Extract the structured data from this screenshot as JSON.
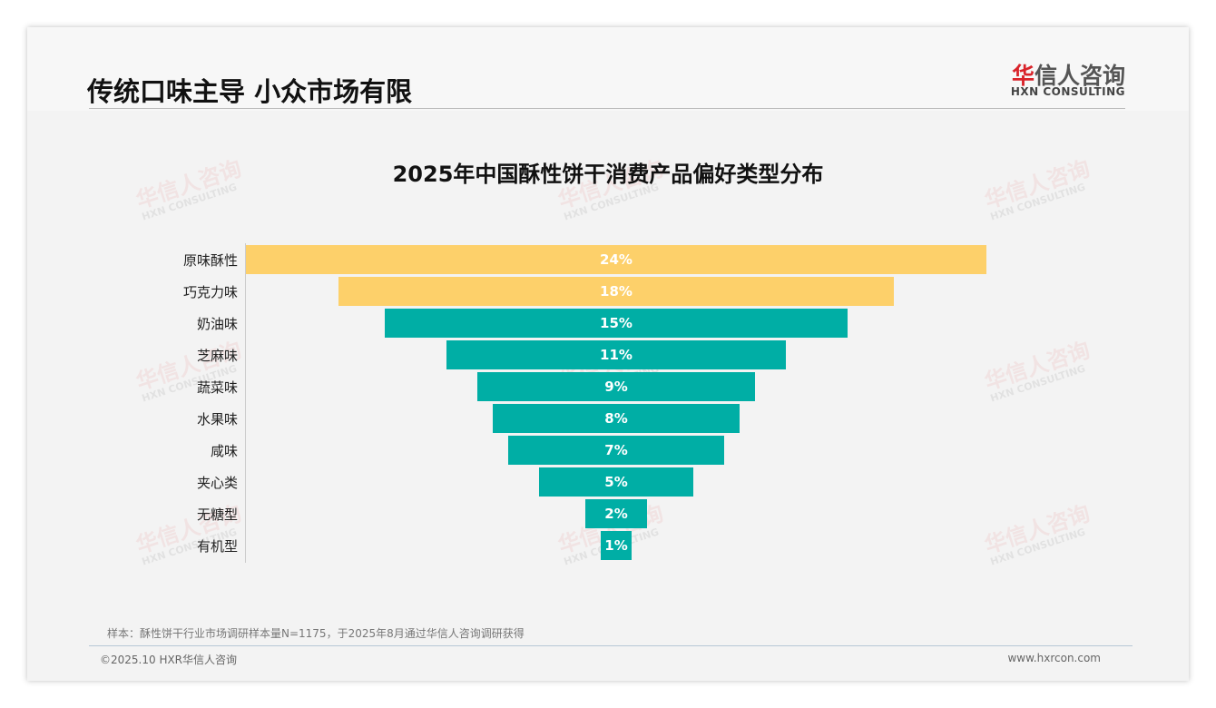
{
  "header": {
    "title": "传统口味主导 小众市场有限",
    "logo_cn_mark": "华",
    "logo_cn_rest": "信人咨询",
    "logo_en": "HXN CONSULTING"
  },
  "watermark": {
    "cn": "华信人咨询",
    "en": "HXN CONSULTING"
  },
  "footer": {
    "note": "样本：酥性饼干行业市场调研样本量N=1175，于2025年8月通过华信人咨询调研获得",
    "copyright": "©2025.10 HXR华信人咨询",
    "website": "www.hxrcon.com"
  },
  "colors": {
    "highlight": "#fdd06a",
    "normal": "#00aea5"
  },
  "chart_data": {
    "type": "bar",
    "subtype": "funnel",
    "title": "2025年中国酥性饼干消费产品偏好类型分布",
    "categories": [
      "原味酥性",
      "巧克力味",
      "奶油味",
      "芝麻味",
      "蔬菜味",
      "水果味",
      "咸味",
      "夹心类",
      "无糖型",
      "有机型"
    ],
    "values": [
      24,
      18,
      15,
      11,
      9,
      8,
      7,
      5,
      2,
      1
    ],
    "labels": [
      "24%",
      "18%",
      "15%",
      "11%",
      "9%",
      "8%",
      "7%",
      "5%",
      "2%",
      "1%"
    ],
    "highlighted": [
      true,
      true,
      false,
      false,
      false,
      false,
      false,
      false,
      false,
      false
    ],
    "unit": "%"
  }
}
